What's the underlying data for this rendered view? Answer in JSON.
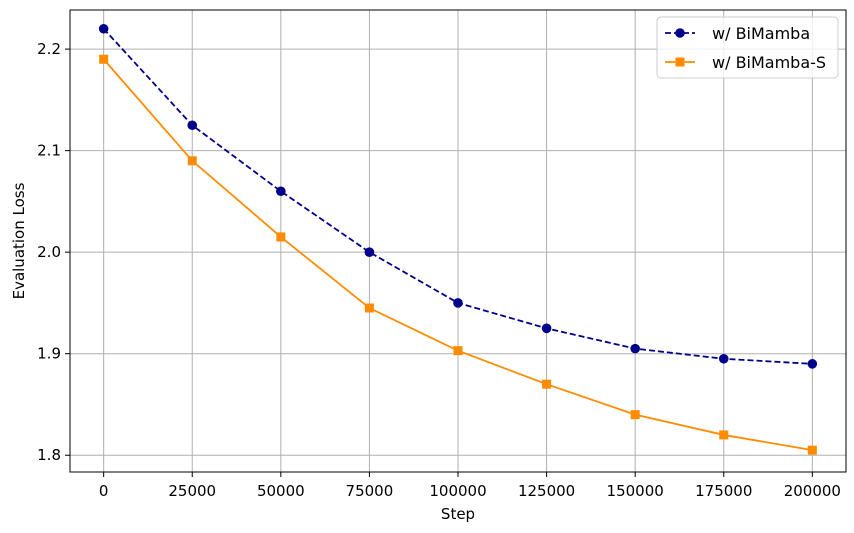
{
  "chart_data": {
    "type": "line",
    "xlabel": "Step",
    "ylabel": "Evaluation Loss",
    "x": [
      0,
      25000,
      50000,
      75000,
      100000,
      125000,
      150000,
      175000,
      200000
    ],
    "xlim": [
      -9500,
      209500
    ],
    "ylim": [
      1.7835,
      2.2385
    ],
    "xticks": [
      0,
      25000,
      50000,
      75000,
      100000,
      125000,
      150000,
      175000,
      200000
    ],
    "xtick_labels": [
      "0",
      "25000",
      "50000",
      "75000",
      "100000",
      "125000",
      "150000",
      "175000",
      "200000"
    ],
    "yticks": [
      1.8,
      1.9,
      2.0,
      2.1,
      2.2
    ],
    "ytick_labels": [
      "1.8",
      "1.9",
      "2.0",
      "2.1",
      "2.2"
    ],
    "grid": true,
    "legend_position": "top-right",
    "series": [
      {
        "name": "w/ BiMamba",
        "values": [
          2.22,
          2.125,
          2.06,
          2.0,
          1.95,
          1.925,
          1.905,
          1.895,
          1.89
        ],
        "color": "#00008b",
        "line_style": "dashed",
        "marker": "circle"
      },
      {
        "name": "w/ BiMamba-S",
        "values": [
          2.19,
          2.09,
          2.015,
          1.945,
          1.903,
          1.87,
          1.84,
          1.82,
          1.805
        ],
        "color": "#ff8c00",
        "line_style": "solid",
        "marker": "square"
      }
    ]
  }
}
